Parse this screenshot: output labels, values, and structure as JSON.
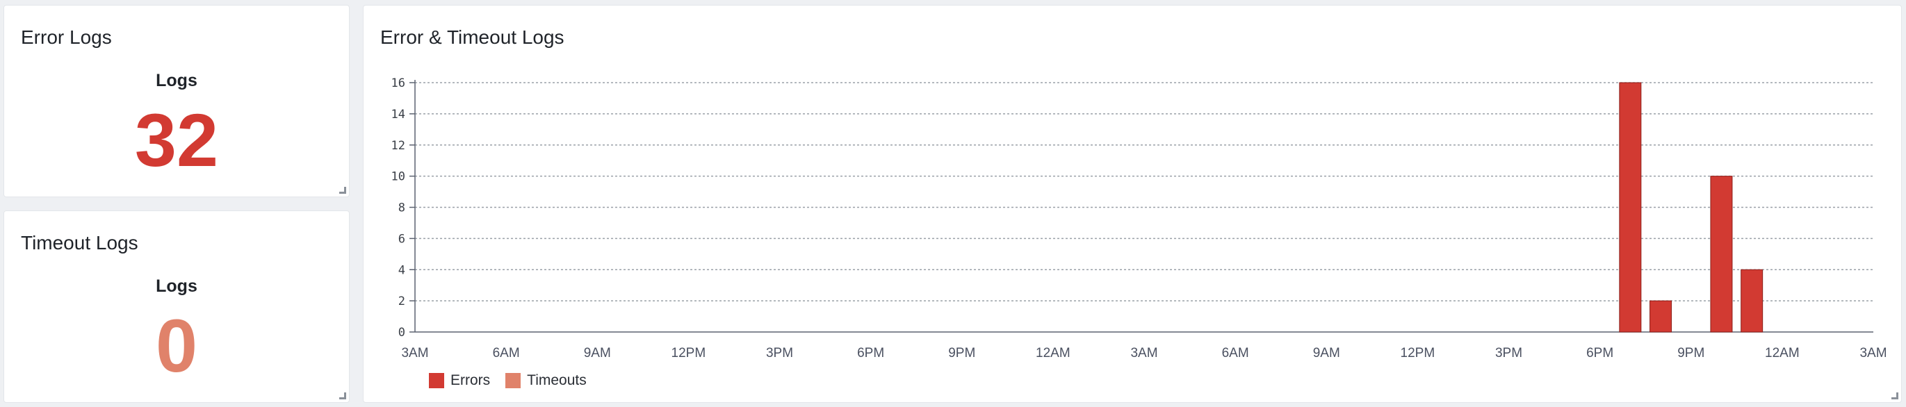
{
  "colors": {
    "errors": "#d23a32",
    "timeouts": "#e0826a",
    "grid": "#9aa0a8",
    "axis": "#5c6270"
  },
  "error_panel": {
    "title": "Error Logs",
    "label": "Logs",
    "value": "32"
  },
  "timeout_panel": {
    "title": "Timeout Logs",
    "label": "Logs",
    "value": "0"
  },
  "chart_panel": {
    "title": "Error & Timeout Logs"
  },
  "chart_data": {
    "type": "bar",
    "title": "Error & Timeout Logs",
    "xlabel": "",
    "ylabel": "",
    "ylim": [
      0,
      16
    ],
    "y_ticks": [
      "0",
      "2",
      "4",
      "6",
      "8",
      "10",
      "12",
      "14",
      "16"
    ],
    "x_tick_labels": [
      "3AM",
      "6AM",
      "9AM",
      "12PM",
      "3PM",
      "6PM",
      "9PM",
      "12AM",
      "3AM",
      "6AM",
      "9AM",
      "12PM",
      "3PM",
      "6PM",
      "9PM",
      "12AM",
      "3AM"
    ],
    "grid": true,
    "legend_position": "bottom-left",
    "series": [
      {
        "name": "Errors",
        "color": "#d23a32",
        "points": [
          {
            "hour": 40,
            "value": 16
          },
          {
            "hour": 41,
            "value": 2
          },
          {
            "hour": 43,
            "value": 10
          },
          {
            "hour": 44,
            "value": 4
          }
        ]
      },
      {
        "name": "Timeouts",
        "color": "#e0826a",
        "points": []
      }
    ]
  }
}
